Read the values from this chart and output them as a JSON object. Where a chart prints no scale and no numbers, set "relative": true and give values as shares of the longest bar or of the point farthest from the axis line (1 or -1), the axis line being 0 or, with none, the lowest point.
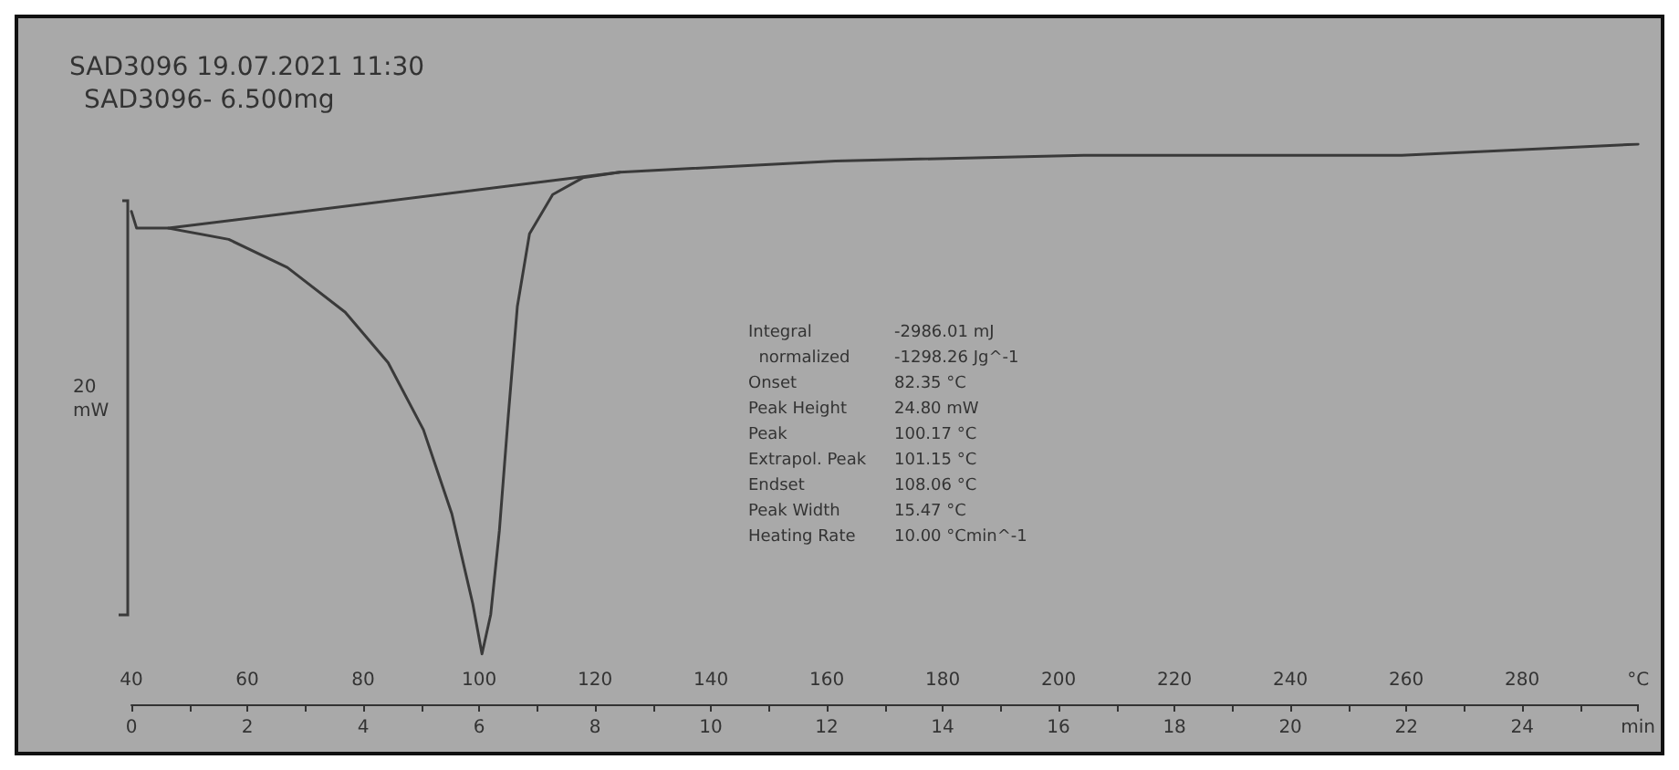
{
  "chart_data": {
    "type": "line",
    "title": "SAD3096 19.07.2021 11:30",
    "subtitle": "SAD3096- 6.500mg",
    "ylabel": "20 mW",
    "relative": true,
    "xlim": [
      40,
      300
    ],
    "xticks": [
      40,
      60,
      80,
      100,
      120,
      140,
      160,
      180,
      200,
      220,
      240,
      260,
      280,
      {
        "value": 300,
        "label": "°C"
      }
    ],
    "x2lim": [
      0,
      26
    ],
    "x2ticks": [
      0,
      2,
      4,
      6,
      8,
      10,
      12,
      14,
      16,
      18,
      20,
      22,
      24,
      {
        "value": 26,
        "label": "min"
      }
    ],
    "grid": false,
    "line_style": "solid",
    "series": [
      {
        "color": "#3a3a3a",
        "x": [
          40,
          40.9,
          46.4,
          56.8,
          66.9,
          76.9,
          84.3,
          90.4,
          95.3,
          98.9,
          100.5,
          102.0,
          103.5,
          105.0,
          106.6,
          108.7,
          112.7,
          117.9,
          124.3,
          161.5,
          204.3,
          259.2,
          300
        ],
        "values": [
          0.88,
          0.85,
          0.85,
          0.83,
          0.78,
          0.7,
          0.61,
          0.49,
          0.34,
          0.18,
          0.09,
          0.16,
          0.31,
          0.51,
          0.71,
          0.84,
          0.91,
          0.94,
          0.95,
          0.97,
          0.98,
          0.98,
          1
        ]
      },
      {
        "color": "#3a3a3a",
        "x": [
          46.4,
          124.3
        ],
        "values": [
          0.85,
          0.95
        ]
      }
    ],
    "annotations": [
      "Integral\t-2986.01 mJ",
      "  normalized\t-1298.26 Jg^-1",
      "Onset\t82.35 °C",
      "Peak Height\t24.80 mW",
      "Peak\t100.17 °C",
      "Extrapol. Peak\t101.15 °C",
      "Endset\t108.06 °C",
      "Peak Width\t15.47 °C",
      "Heating Rate\t10.00 °Cmin^-1"
    ]
  }
}
